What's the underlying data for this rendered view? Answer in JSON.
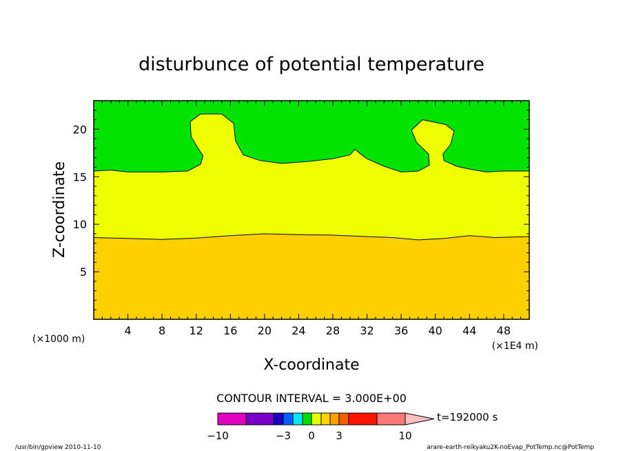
{
  "chart_data": {
    "type": "contour",
    "title": "disturbunce of potential temperature",
    "xlabel": "X-coordinate",
    "ylabel": "Z-coordinate",
    "x_unit_left": "(×1000 m)",
    "x_unit_right": "(×1E4 m)",
    "xlim": [
      0,
      51
    ],
    "ylim": [
      0,
      23
    ],
    "x_ticks": [
      4,
      8,
      12,
      16,
      20,
      24,
      28,
      32,
      36,
      40,
      44,
      48
    ],
    "y_ticks": [
      5,
      10,
      15,
      20
    ],
    "contour_interval_text": "CONTOUR INTERVAL = 3.000E+00",
    "time_label": "t=192000 s",
    "colorbar": {
      "tick_labels": [
        "−10",
        "−3",
        "0",
        "3",
        "10"
      ],
      "colors": [
        "#e000c0",
        "#7a00c8",
        "#1800c8",
        "#0060ff",
        "#00e8ff",
        "#00e000",
        "#e8ff00",
        "#ffd400",
        "#ffa000",
        "#f06000",
        "#ff1400",
        "#ff7878",
        "#ffc0c0"
      ]
    },
    "regions": [
      {
        "level": "upper",
        "color": "#00e400"
      },
      {
        "level": "middle",
        "color": "#eeff00"
      },
      {
        "level": "lower",
        "color": "#ffd000"
      }
    ],
    "boundary_lower": [
      [
        0,
        8.6
      ],
      [
        4,
        8.5
      ],
      [
        8,
        8.4
      ],
      [
        12,
        8.55
      ],
      [
        16,
        8.8
      ],
      [
        20,
        9.0
      ],
      [
        24,
        8.9
      ],
      [
        28,
        8.85
      ],
      [
        32,
        8.7
      ],
      [
        35,
        8.6
      ],
      [
        38,
        8.35
      ],
      [
        41,
        8.5
      ],
      [
        44,
        8.8
      ],
      [
        47,
        8.6
      ],
      [
        51,
        8.7
      ]
    ],
    "boundary_upper": [
      [
        0,
        15.6
      ],
      [
        2,
        15.7
      ],
      [
        4,
        15.5
      ],
      [
        8,
        15.5
      ],
      [
        11,
        15.6
      ],
      [
        12.5,
        16.3
      ],
      [
        12.8,
        17.2
      ],
      [
        12.2,
        18.0
      ],
      [
        11.4,
        19.2
      ],
      [
        11.3,
        20.8
      ],
      [
        12.5,
        21.6
      ],
      [
        15.0,
        21.6
      ],
      [
        16.4,
        20.6
      ],
      [
        16.6,
        18.8
      ],
      [
        17.5,
        17.3
      ],
      [
        19.5,
        16.7
      ],
      [
        22,
        16.4
      ],
      [
        25,
        16.6
      ],
      [
        28,
        16.9
      ],
      [
        30,
        17.3
      ],
      [
        30.6,
        17.9
      ],
      [
        31.1,
        17.5
      ],
      [
        32,
        16.9
      ],
      [
        34,
        16.1
      ],
      [
        36,
        15.5
      ],
      [
        38,
        15.6
      ],
      [
        39.3,
        16.2
      ],
      [
        39.2,
        17.4
      ],
      [
        37.8,
        18.6
      ],
      [
        37.2,
        19.9
      ],
      [
        38.5,
        21.0
      ],
      [
        41.2,
        20.5
      ],
      [
        42.2,
        19.8
      ],
      [
        41.8,
        18.4
      ],
      [
        40.9,
        17.4
      ],
      [
        41.0,
        16.7
      ],
      [
        42.5,
        16.1
      ],
      [
        44,
        15.8
      ],
      [
        46,
        15.5
      ],
      [
        48,
        15.6
      ],
      [
        51,
        15.6
      ]
    ]
  },
  "footer": {
    "left": "/usr/bin/gpview   2010-11-10",
    "right": "arare-earth-reikyaku2K-noEvap_PotTemp.nc@PotTemp"
  }
}
